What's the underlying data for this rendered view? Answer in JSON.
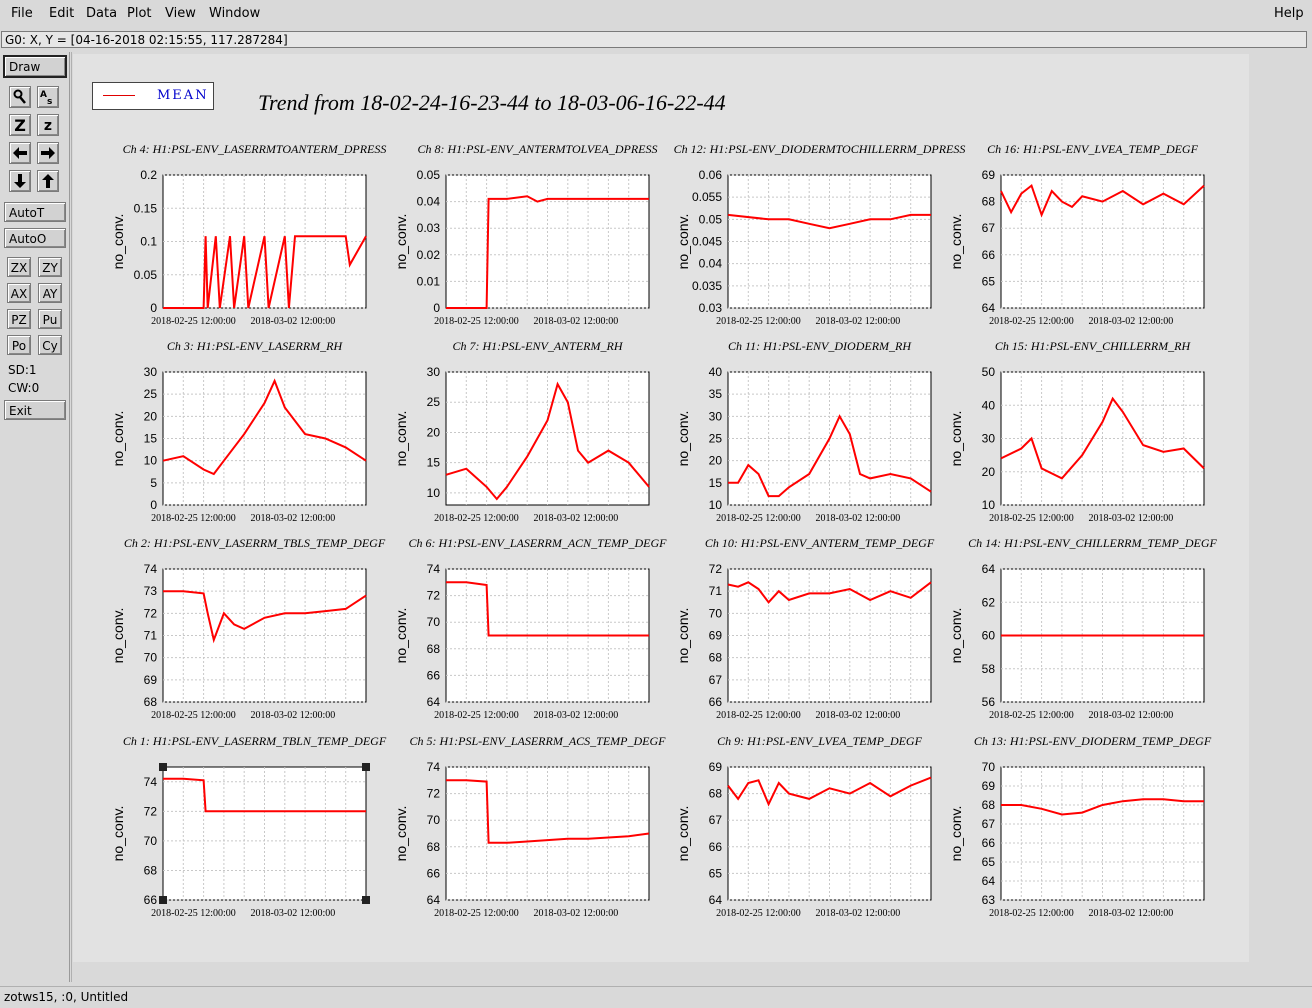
{
  "menubar": {
    "items": [
      "File",
      "Edit",
      "Data",
      "Plot",
      "View",
      "Window"
    ],
    "help": "Help"
  },
  "coord_readout": "G0: X, Y = [04-16-2018 02:15:55, 117.287284]",
  "toolbar": {
    "draw": "Draw",
    "auto_t": "AutoT",
    "auto_o": "AutoO",
    "zoom_z_big": "Z",
    "zoom_z_small": "z",
    "pairs": [
      [
        "ZX",
        "ZY"
      ],
      [
        "AX",
        "AY"
      ],
      [
        "PZ",
        "Pu"
      ],
      [
        "Po",
        "Cy"
      ]
    ],
    "sd": "SD:1",
    "cw": "CW:0",
    "exit": "Exit",
    "icons": [
      "magnify-icon",
      "text-icon",
      "arrow-left-icon",
      "arrow-right-icon",
      "arrow-down-icon",
      "arrow-up-icon"
    ]
  },
  "legend": {
    "label": "MEAN"
  },
  "plot_title": "Trend from 18-02-24-16-23-44 to 18-03-06-16-22-44",
  "status": "zotws15, :0, Untitled",
  "colors": {
    "trace": "#ff0000",
    "legend_text": "#0000cc",
    "grid": "#c8c8c8"
  },
  "chart_data": [
    {
      "type": "line",
      "title": "Ch 4: H1:PSL-ENV_LASERRMTOANTERM_DPRESS",
      "ylabel": "no_conv.",
      "yticks": [
        "0",
        "0.05",
        "0.1",
        "0.15",
        "0.2"
      ],
      "ylim": [
        0,
        0.2
      ],
      "xticks": [
        "2018-02-25 12:00:00",
        "2018-03-02 12:00:00"
      ],
      "series": [
        {
          "name": "MEAN",
          "x": [
            0,
            0.2,
            0.21,
            0.22,
            0.26,
            0.28,
            0.33,
            0.35,
            0.4,
            0.42,
            0.5,
            0.52,
            0.6,
            0.62,
            0.65,
            0.66,
            0.7,
            0.8,
            0.9,
            0.92,
            1
          ],
          "y": [
            0,
            0,
            0.108,
            0,
            0.108,
            0,
            0.108,
            0,
            0.108,
            0,
            0.108,
            0,
            0.108,
            0,
            0.108,
            0.108,
            0.108,
            0.108,
            0.108,
            0.065,
            0.108
          ]
        }
      ]
    },
    {
      "type": "line",
      "title": "Ch 8: H1:PSL-ENV_ANTERMTOLVEA_DPRESS",
      "ylabel": "no_conv.",
      "yticks": [
        "0",
        "0.01",
        "0.02",
        "0.03",
        "0.04",
        "0.05"
      ],
      "ylim": [
        0,
        0.05
      ],
      "xticks": [
        "2018-02-25 12:00:00",
        "2018-03-02 12:00:00"
      ],
      "series": [
        {
          "name": "MEAN",
          "x": [
            0,
            0.2,
            0.21,
            0.3,
            0.4,
            0.45,
            0.5,
            0.6,
            0.7,
            0.8,
            0.9,
            1
          ],
          "y": [
            0,
            0,
            0.041,
            0.041,
            0.042,
            0.04,
            0.041,
            0.041,
            0.041,
            0.041,
            0.041,
            0.041
          ]
        }
      ]
    },
    {
      "type": "line",
      "title": "Ch 12: H1:PSL-ENV_DIODERMTOCHILLERRM_DPRESS",
      "ylabel": "no_conv.",
      "yticks": [
        "0.03",
        "0.035",
        "0.04",
        "0.045",
        "0.05",
        "0.055",
        "0.06"
      ],
      "ylim": [
        0.03,
        0.06
      ],
      "xticks": [
        "2018-02-25 12:00:00",
        "2018-03-02 12:00:00"
      ],
      "series": [
        {
          "name": "MEAN",
          "x": [
            0,
            0.2,
            0.3,
            0.4,
            0.5,
            0.6,
            0.7,
            0.8,
            0.9,
            1
          ],
          "y": [
            0.051,
            0.05,
            0.05,
            0.049,
            0.048,
            0.049,
            0.05,
            0.05,
            0.051,
            0.051
          ]
        }
      ]
    },
    {
      "type": "line",
      "title": "Ch 16: H1:PSL-ENV_LVEA_TEMP_DEGF",
      "ylabel": "no_conv.",
      "yticks": [
        "64",
        "65",
        "66",
        "67",
        "68",
        "69"
      ],
      "ylim": [
        64,
        69
      ],
      "xticks": [
        "2018-02-25 12:00:00",
        "2018-03-02 12:00:00"
      ],
      "series": [
        {
          "name": "MEAN",
          "x": [
            0,
            0.05,
            0.1,
            0.15,
            0.2,
            0.25,
            0.3,
            0.35,
            0.4,
            0.5,
            0.6,
            0.7,
            0.8,
            0.9,
            1
          ],
          "y": [
            68.4,
            67.6,
            68.3,
            68.6,
            67.5,
            68.4,
            68.0,
            67.8,
            68.2,
            68.0,
            68.4,
            67.9,
            68.3,
            67.9,
            68.6
          ]
        }
      ]
    },
    {
      "type": "line",
      "title": "Ch 3: H1:PSL-ENV_LASERRM_RH",
      "ylabel": "no_conv.",
      "yticks": [
        "0",
        "5",
        "10",
        "15",
        "20",
        "25",
        "30"
      ],
      "ylim": [
        0,
        30
      ],
      "xticks": [
        "2018-02-25 12:00:00",
        "2018-03-02 12:00:00"
      ],
      "series": [
        {
          "name": "MEAN",
          "x": [
            0,
            0.1,
            0.2,
            0.25,
            0.3,
            0.4,
            0.5,
            0.55,
            0.6,
            0.7,
            0.8,
            0.9,
            1
          ],
          "y": [
            10,
            11,
            8,
            7,
            10,
            16,
            23,
            28,
            22,
            16,
            15,
            13,
            10
          ]
        }
      ]
    },
    {
      "type": "line",
      "title": "Ch 7: H1:PSL-ENV_ANTERM_RH",
      "ylabel": "no_conv.",
      "yticks": [
        "10",
        "15",
        "20",
        "25",
        "30"
      ],
      "ylim": [
        8,
        30
      ],
      "xticks": [
        "2018-02-25 12:00:00",
        "2018-03-02 12:00:00"
      ],
      "series": [
        {
          "name": "MEAN",
          "x": [
            0,
            0.1,
            0.2,
            0.25,
            0.3,
            0.4,
            0.5,
            0.55,
            0.6,
            0.65,
            0.7,
            0.8,
            0.9,
            1
          ],
          "y": [
            13,
            14,
            11,
            9,
            11,
            16,
            22,
            28,
            25,
            17,
            15,
            17,
            15,
            11
          ]
        }
      ]
    },
    {
      "type": "line",
      "title": "Ch 11: H1:PSL-ENV_DIODERM_RH",
      "ylabel": "no_conv.",
      "yticks": [
        "10",
        "15",
        "20",
        "25",
        "30",
        "35",
        "40"
      ],
      "ylim": [
        10,
        40
      ],
      "xticks": [
        "2018-02-25 12:00:00",
        "2018-03-02 12:00:00"
      ],
      "series": [
        {
          "name": "MEAN",
          "x": [
            0,
            0.05,
            0.1,
            0.15,
            0.2,
            0.25,
            0.3,
            0.4,
            0.5,
            0.55,
            0.6,
            0.65,
            0.7,
            0.8,
            0.9,
            1
          ],
          "y": [
            15,
            15,
            19,
            17,
            12,
            12,
            14,
            17,
            25,
            30,
            26,
            17,
            16,
            17,
            16,
            13
          ]
        }
      ]
    },
    {
      "type": "line",
      "title": "Ch 15: H1:PSL-ENV_CHILLERRM_RH",
      "ylabel": "no_conv.",
      "yticks": [
        "10",
        "20",
        "30",
        "40",
        "50"
      ],
      "ylim": [
        10,
        50
      ],
      "xticks": [
        "2018-02-25 12:00:00",
        "2018-03-02 12:00:00"
      ],
      "series": [
        {
          "name": "MEAN",
          "x": [
            0,
            0.1,
            0.15,
            0.2,
            0.3,
            0.4,
            0.5,
            0.55,
            0.6,
            0.7,
            0.8,
            0.9,
            1
          ],
          "y": [
            24,
            27,
            30,
            21,
            18,
            25,
            35,
            42,
            38,
            28,
            26,
            27,
            21
          ]
        }
      ]
    },
    {
      "type": "line",
      "title": "Ch 2: H1:PSL-ENV_LASERRM_TBLS_TEMP_DEGF",
      "ylabel": "no_conv.",
      "yticks": [
        "68",
        "69",
        "70",
        "71",
        "72",
        "73",
        "74"
      ],
      "ylim": [
        68,
        74
      ],
      "xticks": [
        "2018-02-25 12:00:00",
        "2018-03-02 12:00:00"
      ],
      "series": [
        {
          "name": "MEAN",
          "x": [
            0,
            0.1,
            0.2,
            0.22,
            0.25,
            0.3,
            0.35,
            0.4,
            0.5,
            0.6,
            0.7,
            0.8,
            0.9,
            1
          ],
          "y": [
            73,
            73,
            72.9,
            72,
            70.8,
            72,
            71.5,
            71.3,
            71.8,
            72,
            72,
            72.1,
            72.2,
            72.8
          ]
        }
      ]
    },
    {
      "type": "line",
      "title": "Ch 6: H1:PSL-ENV_LASERRM_ACN_TEMP_DEGF",
      "ylabel": "no_conv.",
      "yticks": [
        "64",
        "66",
        "68",
        "70",
        "72",
        "74"
      ],
      "ylim": [
        64,
        74
      ],
      "xticks": [
        "2018-02-25 12:00:00",
        "2018-03-02 12:00:00"
      ],
      "series": [
        {
          "name": "MEAN",
          "x": [
            0,
            0.1,
            0.2,
            0.21,
            0.3,
            0.4,
            0.5,
            0.6,
            0.7,
            0.8,
            0.9,
            1
          ],
          "y": [
            73,
            73,
            72.8,
            69,
            69,
            69,
            69,
            69,
            69,
            69,
            69,
            69
          ]
        }
      ]
    },
    {
      "type": "line",
      "title": "Ch 10: H1:PSL-ENV_ANTERM_TEMP_DEGF",
      "ylabel": "no_conv.",
      "yticks": [
        "66",
        "67",
        "68",
        "69",
        "70",
        "71",
        "72"
      ],
      "ylim": [
        66,
        72
      ],
      "xticks": [
        "2018-02-25 12:00:00",
        "2018-03-02 12:00:00"
      ],
      "series": [
        {
          "name": "MEAN",
          "x": [
            0,
            0.05,
            0.1,
            0.15,
            0.2,
            0.25,
            0.3,
            0.4,
            0.5,
            0.6,
            0.7,
            0.8,
            0.9,
            1
          ],
          "y": [
            71.3,
            71.2,
            71.4,
            71.1,
            70.5,
            71.0,
            70.6,
            70.9,
            70.9,
            71.1,
            70.6,
            71.0,
            70.7,
            71.4
          ]
        }
      ]
    },
    {
      "type": "line",
      "title": "Ch 14: H1:PSL-ENV_CHILLERRM_TEMP_DEGF",
      "ylabel": "no_conv.",
      "yticks": [
        "56",
        "58",
        "60",
        "62",
        "64"
      ],
      "ylim": [
        56,
        64
      ],
      "xticks": [
        "2018-02-25 12:00:00",
        "2018-03-02 12:00:00"
      ],
      "series": [
        {
          "name": "MEAN",
          "x": [
            0,
            0.1,
            0.2,
            0.3,
            0.4,
            0.5,
            0.6,
            0.7,
            0.8,
            0.9,
            1
          ],
          "y": [
            60,
            60,
            60,
            60,
            60,
            60,
            60,
            60,
            60,
            60,
            60
          ]
        }
      ]
    },
    {
      "type": "line",
      "title": "Ch 1: H1:PSL-ENV_LASERRM_TBLN_TEMP_DEGF",
      "ylabel": "no_conv.",
      "yticks": [
        "66",
        "68",
        "70",
        "72",
        "74"
      ],
      "ylim": [
        66,
        75
      ],
      "xticks": [
        "2018-02-25 12:00:00",
        "2018-03-02 12:00:00"
      ],
      "series": [
        {
          "name": "MEAN",
          "x": [
            0,
            0.1,
            0.2,
            0.21,
            0.3,
            0.4,
            0.5,
            0.6,
            0.7,
            0.8,
            0.9,
            1
          ],
          "y": [
            74.2,
            74.2,
            74.1,
            72,
            72,
            72,
            72,
            72,
            72,
            72,
            72,
            72
          ]
        }
      ]
    },
    {
      "type": "line",
      "title": "Ch 5: H1:PSL-ENV_LASERRM_ACS_TEMP_DEGF",
      "ylabel": "no_conv.",
      "yticks": [
        "64",
        "66",
        "68",
        "70",
        "72",
        "74"
      ],
      "ylim": [
        64,
        74
      ],
      "xticks": [
        "2018-02-25 12:00:00",
        "2018-03-02 12:00:00"
      ],
      "series": [
        {
          "name": "MEAN",
          "x": [
            0,
            0.1,
            0.2,
            0.21,
            0.3,
            0.4,
            0.5,
            0.6,
            0.7,
            0.8,
            0.9,
            1
          ],
          "y": [
            73,
            73,
            72.9,
            68.3,
            68.3,
            68.4,
            68.5,
            68.6,
            68.6,
            68.7,
            68.8,
            69.0
          ]
        }
      ]
    },
    {
      "type": "line",
      "title": "Ch 9: H1:PSL-ENV_LVEA_TEMP_DEGF",
      "ylabel": "no_conv.",
      "yticks": [
        "64",
        "65",
        "66",
        "67",
        "68",
        "69"
      ],
      "ylim": [
        64,
        69
      ],
      "xticks": [
        "2018-02-25 12:00:00",
        "2018-03-02 12:00:00"
      ],
      "series": [
        {
          "name": "MEAN",
          "x": [
            0,
            0.05,
            0.1,
            0.15,
            0.2,
            0.25,
            0.3,
            0.4,
            0.5,
            0.6,
            0.7,
            0.8,
            0.9,
            1
          ],
          "y": [
            68.3,
            67.8,
            68.4,
            68.5,
            67.6,
            68.4,
            68.0,
            67.8,
            68.2,
            68.0,
            68.4,
            67.9,
            68.3,
            68.6
          ]
        }
      ]
    },
    {
      "type": "line",
      "title": "Ch 13: H1:PSL-ENV_DIODERM_TEMP_DEGF",
      "ylabel": "no_conv.",
      "yticks": [
        "63",
        "64",
        "65",
        "66",
        "67",
        "68",
        "69",
        "70"
      ],
      "ylim": [
        63,
        70
      ],
      "xticks": [
        "2018-02-25 12:00:00",
        "2018-03-02 12:00:00"
      ],
      "series": [
        {
          "name": "MEAN",
          "x": [
            0,
            0.1,
            0.2,
            0.3,
            0.4,
            0.5,
            0.6,
            0.7,
            0.8,
            0.9,
            1
          ],
          "y": [
            68,
            68,
            67.8,
            67.5,
            67.6,
            68,
            68.2,
            68.3,
            68.3,
            68.2,
            68.2
          ]
        }
      ]
    }
  ]
}
